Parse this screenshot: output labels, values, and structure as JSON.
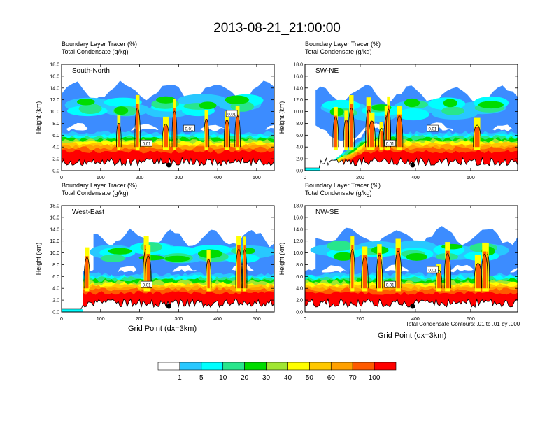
{
  "title": "2013-08-21_21:00:00",
  "panels": [
    {
      "id": "south-north",
      "name": "South-North",
      "line1": "Boundary Layer Tracer    (%)",
      "line2": "Total Condensate    (g/kg)",
      "xticks": [
        "0",
        "100",
        "200",
        "300",
        "400",
        "500"
      ],
      "xvals": [
        0,
        100,
        200,
        300,
        400,
        500
      ],
      "xmax": 545,
      "marker_x": 275,
      "contour_labels": [
        "0.01",
        "0.01",
        "0.01"
      ]
    },
    {
      "id": "sw-ne",
      "name": "SW-NE",
      "line1": "Boundary Layer Tracer    (%)",
      "line2": "Total Condensate    (g/kg)",
      "xticks": [
        "0",
        "200",
        "400",
        "600"
      ],
      "xvals": [
        0,
        200,
        400,
        600
      ],
      "xmax": 770,
      "marker_x": 390,
      "contour_labels": [
        "0.01",
        "0.01"
      ]
    },
    {
      "id": "west-east",
      "name": "West-East",
      "line1": "Boundary Layer Tracer    (%)",
      "line2": "Total Condensate    (g/kg)",
      "xticks": [
        "0",
        "100",
        "200",
        "300",
        "400",
        "500"
      ],
      "xvals": [
        0,
        100,
        200,
        300,
        400,
        500
      ],
      "xmax": 545,
      "marker_x": 275,
      "contour_labels": [
        "0.01"
      ]
    },
    {
      "id": "nw-se",
      "name": "NW-SE",
      "line1": "Boundary Layer Tracer    (%)",
      "line2": "Total Condensate    (g/kg)",
      "xticks": [
        "0",
        "200",
        "400",
        "600"
      ],
      "xvals": [
        0,
        200,
        400,
        600
      ],
      "xmax": 770,
      "marker_x": 390,
      "contour_labels": [
        "0.01",
        "0.01"
      ]
    }
  ],
  "yaxis": {
    "label": "Height (km)",
    "ticks": [
      "0.0",
      "2.0",
      "4.0",
      "6.0",
      "8.0",
      "10.0",
      "12.0",
      "14.0",
      "16.0",
      "18.0"
    ]
  },
  "xaxis_label": "Grid Point (dx=3km)",
  "footnote": "Total Condensate Contours: .01 to .01 by .000",
  "colorbar": {
    "labels": [
      "1",
      "5",
      "10",
      "20",
      "30",
      "40",
      "50",
      "60",
      "70",
      "100"
    ],
    "colors": [
      "#ffffff",
      "#3c8cff",
      "#28c8ff",
      "#00ffff",
      "#28e68c",
      "#00dc00",
      "#a0e632",
      "#ffff00",
      "#ffc800",
      "#ffa000",
      "#ff5a00",
      "#ff0000"
    ]
  },
  "chart_data": {
    "type": "heatmap",
    "title": "2013-08-21_21:00:00",
    "ylabel": "Height (km)",
    "xlabel": "Grid Point (dx=3km)",
    "ylim": [
      0,
      18
    ],
    "levels": [
      1,
      5,
      10,
      20,
      30,
      40,
      50,
      60,
      70,
      100
    ],
    "units": "%",
    "contour_variable": "Total Condensate (g/kg)",
    "contour_levels": [
      0.01
    ]
  }
}
